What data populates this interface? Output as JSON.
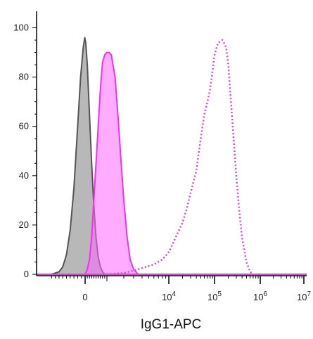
{
  "chart_data": {
    "type": "area",
    "title": "",
    "xlabel": "IgG1-APC",
    "ylabel": "",
    "x_scale": "biexponential",
    "xlim": [
      -1000,
      10000000
    ],
    "ylim": [
      0,
      105
    ],
    "y_ticks": [
      0,
      20,
      40,
      60,
      80,
      100
    ],
    "y_tick_labels": [
      "0",
      "20",
      "40",
      "60",
      "80",
      "100"
    ],
    "x_ticks": [
      {
        "value": 0,
        "label": "0",
        "exp": ""
      },
      {
        "value": 10000,
        "label": "10",
        "exp": "4"
      },
      {
        "value": 100000,
        "label": "10",
        "exp": "5"
      },
      {
        "value": 1000000,
        "label": "10",
        "exp": "6"
      },
      {
        "value": 10000000,
        "label": "10",
        "exp": "7"
      }
    ],
    "grid": false,
    "series": [
      {
        "style": "solid",
        "line_color": "#555555",
        "fill_color": "#9a9a9a",
        "fill_opacity": 0.7,
        "points": [
          [
            -900,
            0
          ],
          [
            -700,
            1
          ],
          [
            -600,
            3
          ],
          [
            -500,
            8
          ],
          [
            -400,
            18
          ],
          [
            -300,
            35
          ],
          [
            -200,
            60
          ],
          [
            -120,
            80
          ],
          [
            -50,
            92
          ],
          [
            -10,
            96
          ],
          [
            30,
            94
          ],
          [
            100,
            85
          ],
          [
            200,
            65
          ],
          [
            300,
            45
          ],
          [
            400,
            28
          ],
          [
            500,
            15
          ],
          [
            600,
            7
          ],
          [
            700,
            3
          ],
          [
            800,
            1
          ],
          [
            900,
            0
          ]
        ]
      },
      {
        "style": "solid",
        "line_color": "#ee33ee",
        "fill_color": "#ff66ff",
        "fill_opacity": 0.55,
        "points": [
          [
            0,
            0
          ],
          [
            100,
            2
          ],
          [
            200,
            6
          ],
          [
            300,
            15
          ],
          [
            400,
            30
          ],
          [
            500,
            45
          ],
          [
            600,
            60
          ],
          [
            700,
            75
          ],
          [
            800,
            86
          ],
          [
            900,
            89
          ],
          [
            1000,
            90
          ],
          [
            1100,
            90
          ],
          [
            1200,
            89
          ],
          [
            1400,
            80
          ],
          [
            1600,
            62
          ],
          [
            1800,
            45
          ],
          [
            2000,
            30
          ],
          [
            2300,
            15
          ],
          [
            2600,
            6
          ],
          [
            3000,
            2
          ],
          [
            3500,
            0
          ]
        ]
      },
      {
        "style": "dotted",
        "line_color": "#dd44dd",
        "fill_color": "none",
        "fill_opacity": 0,
        "points": [
          [
            1000,
            0
          ],
          [
            2000,
            0.5
          ],
          [
            3000,
            1.5
          ],
          [
            4000,
            2.5
          ],
          [
            6000,
            4
          ],
          [
            8000,
            6
          ],
          [
            10000,
            9
          ],
          [
            12000,
            12
          ],
          [
            15000,
            16
          ],
          [
            20000,
            21
          ],
          [
            25000,
            27
          ],
          [
            30000,
            33
          ],
          [
            40000,
            42
          ],
          [
            50000,
            55
          ],
          [
            60000,
            65
          ],
          [
            70000,
            70
          ],
          [
            80000,
            75
          ],
          [
            90000,
            82
          ],
          [
            100000,
            89
          ],
          [
            120000,
            94
          ],
          [
            150000,
            95
          ],
          [
            180000,
            92
          ],
          [
            200000,
            85
          ],
          [
            250000,
            60
          ],
          [
            300000,
            40
          ],
          [
            350000,
            25
          ],
          [
            400000,
            15
          ],
          [
            500000,
            5
          ],
          [
            600000,
            1
          ],
          [
            700000,
            0
          ]
        ]
      }
    ]
  }
}
